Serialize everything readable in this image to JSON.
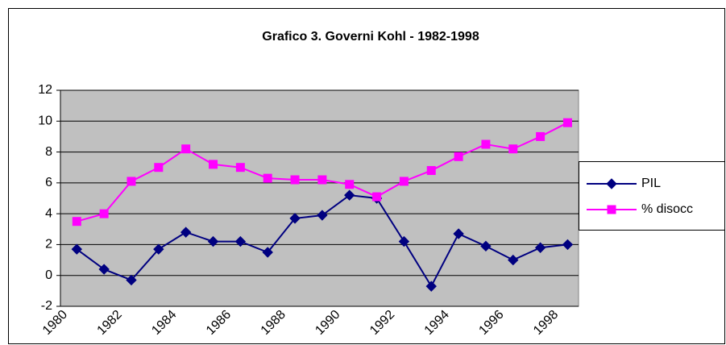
{
  "chart_data": {
    "type": "line",
    "title": "Grafico 3. Governi Kohl - 1982-1998",
    "categories": [
      "1980",
      null,
      "1982",
      null,
      "1984",
      null,
      "1986",
      null,
      "1988",
      null,
      "1990",
      null,
      "1992",
      null,
      "1994",
      null,
      "1996",
      null,
      "1998"
    ],
    "series": [
      {
        "name": "PIL",
        "color": "#000080",
        "marker": "diamond",
        "values": [
          1.7,
          0.4,
          -0.3,
          1.7,
          2.8,
          2.2,
          2.2,
          1.5,
          3.7,
          3.9,
          5.2,
          5.0,
          2.2,
          -0.7,
          2.7,
          1.9,
          1.0,
          1.8,
          2.0
        ]
      },
      {
        "name": "% disocc",
        "color": "#ff00ff",
        "marker": "square",
        "values": [
          3.5,
          4.0,
          6.1,
          7.0,
          8.2,
          7.2,
          7.0,
          6.3,
          6.2,
          6.2,
          5.9,
          5.1,
          6.1,
          6.8,
          7.7,
          8.5,
          8.2,
          9.0,
          9.9
        ]
      }
    ],
    "ylim": [
      -2,
      12
    ],
    "yticks": [
      -2,
      0,
      2,
      4,
      6,
      8,
      10,
      12
    ],
    "grid": true,
    "legend": "right"
  }
}
